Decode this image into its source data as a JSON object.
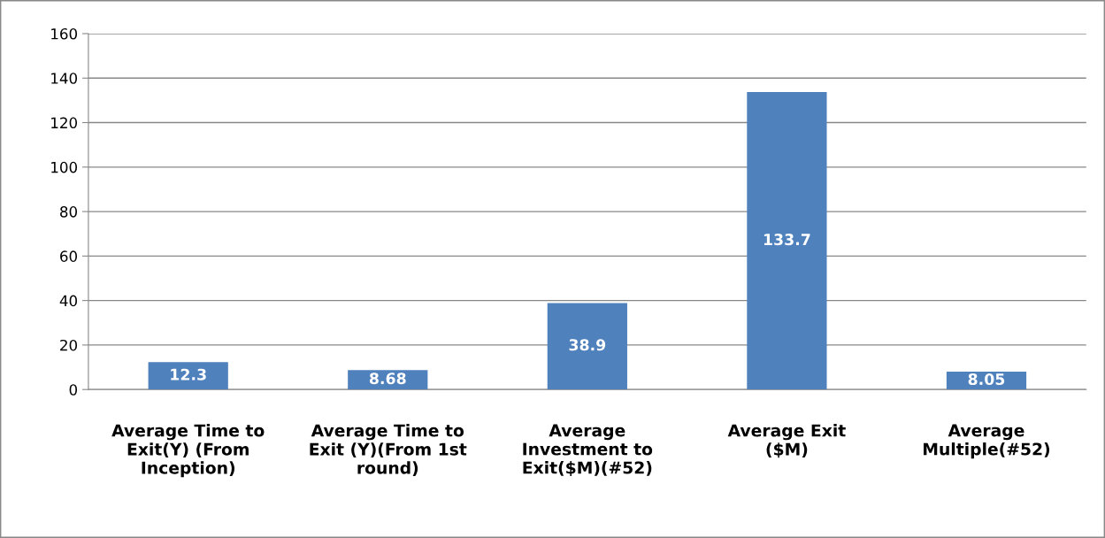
{
  "chart_data": {
    "type": "bar",
    "categories": [
      "Average Time to\nExit(Y) (From\nInception)",
      "Average Time to\nExit (Y)(From 1st\nround)",
      "Average\nInvestment to\nExit($M)(#52)",
      "Average Exit\n($M)",
      "Average\nMultiple(#52)"
    ],
    "values": [
      12.3,
      8.68,
      38.9,
      133.7,
      8.05
    ],
    "color": "#4f81bd",
    "ylim": [
      0,
      160
    ],
    "yticks": [
      0,
      20,
      40,
      60,
      80,
      100,
      120,
      140,
      160
    ],
    "grid": "y",
    "data_labels": true,
    "legend": false
  }
}
